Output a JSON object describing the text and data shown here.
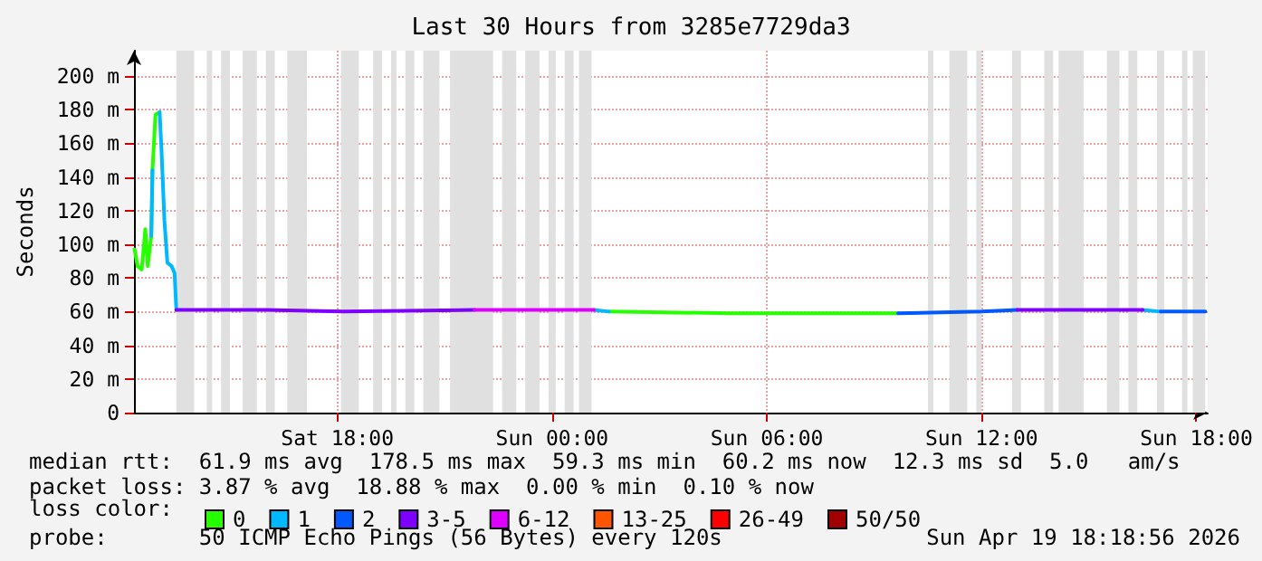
{
  "chart_data": {
    "type": "line",
    "title": "Last 30 Hours from 3285e7729da3",
    "ylabel": "Seconds",
    "legend_title": "loss color:",
    "legend": "bottom",
    "grid": true,
    "xlim": [
      "2026-04-18T12:19",
      "2026-04-19T18:19"
    ],
    "xticks": [
      {
        "value": "2026-04-18T18:00",
        "label": "Sat 18:00"
      },
      {
        "value": "2026-04-19T00:00",
        "label": "Sun 00:00"
      },
      {
        "value": "2026-04-19T06:00",
        "label": "Sun 06:00"
      },
      {
        "value": "2026-04-19T12:00",
        "label": "Sun 12:00"
      },
      {
        "value": "2026-04-19T18:00",
        "label": "Sun 18:00"
      }
    ],
    "ylim": [
      0,
      215
    ],
    "yticks": [
      0,
      {
        "value": 20,
        "label": "20 m"
      },
      {
        "value": 40,
        "label": "40 m"
      },
      {
        "value": 60,
        "label": "60 m"
      },
      {
        "value": 80,
        "label": "80 m"
      },
      {
        "value": 100,
        "label": "100 m"
      },
      {
        "value": 120,
        "label": "120 m"
      },
      {
        "value": 140,
        "label": "140 m"
      },
      {
        "value": 160,
        "label": "160 m"
      },
      {
        "value": 180,
        "label": "180 m"
      },
      {
        "value": 200,
        "label": "200 m"
      }
    ],
    "x": [
      "2026-04-18T12:20",
      "2026-04-18T12:25",
      "2026-04-18T12:32",
      "2026-04-18T12:38",
      "2026-04-18T12:42",
      "2026-04-18T12:48",
      "2026-04-18T12:50",
      "2026-04-18T12:55",
      "2026-04-18T13:02",
      "2026-04-18T13:05",
      "2026-04-18T13:10",
      "2026-04-18T13:15",
      "2026-04-18T13:22",
      "2026-04-18T13:27",
      "2026-04-18T13:30",
      "2026-04-18T16:00",
      "2026-04-18T18:10",
      "2026-04-18T21:50",
      "2026-04-19T01:10",
      "2026-04-19T01:35",
      "2026-04-19T05:00",
      "2026-04-19T09:40",
      "2026-04-19T12:00",
      "2026-04-19T13:00",
      "2026-04-19T16:30",
      "2026-04-19T17:00",
      "2026-04-19T18:15"
    ],
    "series": [
      {
        "name": "0",
        "color": "#26ff00",
        "values": [
          97,
          87,
          85,
          109,
          87,
          105,
          144,
          177,
          178.5,
          null,
          null,
          null,
          null,
          null,
          null,
          null,
          null,
          null,
          null,
          60,
          59,
          59,
          null,
          null,
          null,
          null,
          null
        ]
      },
      {
        "name": "1",
        "color": "#00b8ff",
        "values": [
          null,
          null,
          null,
          null,
          null,
          105,
          144,
          null,
          178.5,
          157,
          114,
          89,
          87,
          83,
          61,
          null,
          null,
          null,
          61,
          60,
          null,
          null,
          null,
          null,
          61,
          60,
          null
        ]
      },
      {
        "name": "2",
        "color": "#0059ff",
        "values": [
          null,
          null,
          null,
          null,
          null,
          null,
          null,
          null,
          null,
          null,
          null,
          null,
          null,
          null,
          null,
          null,
          null,
          null,
          null,
          null,
          null,
          59,
          60,
          61,
          null,
          60,
          60
        ]
      },
      {
        "name": "3-5",
        "color": "#7e00ff",
        "values": [
          null,
          null,
          null,
          null,
          null,
          null,
          null,
          null,
          null,
          null,
          null,
          null,
          null,
          null,
          61,
          61,
          60,
          61,
          null,
          null,
          null,
          null,
          null,
          61,
          61,
          null,
          null
        ]
      },
      {
        "name": "6-12",
        "color": "#dd00ff",
        "values": [
          null,
          null,
          null,
          null,
          null,
          null,
          null,
          null,
          null,
          null,
          null,
          null,
          null,
          null,
          null,
          null,
          null,
          61,
          61,
          null,
          null,
          null,
          null,
          null,
          null,
          null,
          null
        ]
      },
      {
        "name": "13-25",
        "color": "#ff5500",
        "values": [
          null,
          null,
          null,
          null,
          null,
          null,
          null,
          null,
          null,
          null,
          null,
          null,
          null,
          null,
          null,
          null,
          null,
          null,
          null,
          null,
          null,
          null,
          null,
          null,
          null,
          null,
          null
        ]
      },
      {
        "name": "26-49",
        "color": "#ff0000",
        "values": [
          null,
          null,
          null,
          null,
          null,
          null,
          null,
          null,
          null,
          null,
          null,
          null,
          null,
          null,
          null,
          null,
          null,
          null,
          null,
          null,
          null,
          null,
          null,
          null,
          null,
          null,
          null
        ]
      },
      {
        "name": "50/50",
        "color": "#a10000",
        "values": [
          null,
          null,
          null,
          null,
          null,
          null,
          null,
          null,
          null,
          null,
          null,
          null,
          null,
          null,
          null,
          null,
          null,
          null,
          null,
          null,
          null,
          null,
          null,
          null,
          null,
          null,
          null
        ]
      }
    ],
    "bands": [
      {
        "axis": "x",
        "from": "2026-04-18T13:30",
        "to": "2026-04-18T14:00",
        "color": "#e0e0e0"
      },
      {
        "axis": "x",
        "from": "2026-04-18T14:21",
        "to": "2026-04-18T14:30",
        "color": "#e0e0e0"
      },
      {
        "axis": "x",
        "from": "2026-04-18T14:45",
        "to": "2026-04-18T15:00",
        "color": "#e0e0e0"
      },
      {
        "axis": "x",
        "from": "2026-04-18T15:21",
        "to": "2026-04-18T15:45",
        "color": "#e0e0e0"
      },
      {
        "axis": "x",
        "from": "2026-04-18T16:00",
        "to": "2026-04-18T16:15",
        "color": "#e0e0e0"
      },
      {
        "axis": "x",
        "from": "2026-04-18T16:36",
        "to": "2026-04-18T17:09",
        "color": "#e0e0e0"
      },
      {
        "axis": "x",
        "from": "2026-04-18T18:06",
        "to": "2026-04-18T18:36",
        "color": "#e0e0e0"
      },
      {
        "axis": "x",
        "from": "2026-04-18T19:00",
        "to": "2026-04-18T19:15",
        "color": "#e0e0e0"
      },
      {
        "axis": "x",
        "from": "2026-04-18T19:30",
        "to": "2026-04-18T19:39",
        "color": "#e0e0e0"
      },
      {
        "axis": "x",
        "from": "2026-04-18T19:54",
        "to": "2026-04-18T20:09",
        "color": "#e0e0e0"
      },
      {
        "axis": "x",
        "from": "2026-04-18T20:24",
        "to": "2026-04-18T20:51",
        "color": "#e0e0e0"
      },
      {
        "axis": "x",
        "from": "2026-04-18T21:09",
        "to": "2026-04-18T22:21",
        "color": "#e0e0e0"
      },
      {
        "axis": "x",
        "from": "2026-04-18T22:36",
        "to": "2026-04-18T23:00",
        "color": "#e0e0e0"
      },
      {
        "axis": "x",
        "from": "2026-04-18T23:15",
        "to": "2026-04-18T23:39",
        "color": "#e0e0e0"
      },
      {
        "axis": "x",
        "from": "2026-04-18T23:54",
        "to": "2026-04-19T00:06",
        "color": "#e0e0e0"
      },
      {
        "axis": "x",
        "from": "2026-04-19T00:21",
        "to": "2026-04-19T00:36",
        "color": "#e0e0e0"
      },
      {
        "axis": "x",
        "from": "2026-04-19T00:45",
        "to": "2026-04-19T01:06",
        "color": "#e0e0e0"
      },
      {
        "axis": "x",
        "from": "2026-04-19T10:30",
        "to": "2026-04-19T10:39",
        "color": "#e0e0e0"
      },
      {
        "axis": "x",
        "from": "2026-04-19T11:06",
        "to": "2026-04-19T11:36",
        "color": "#e0e0e0"
      },
      {
        "axis": "x",
        "from": "2026-04-19T11:51",
        "to": "2026-04-19T12:00",
        "color": "#e0e0e0"
      },
      {
        "axis": "x",
        "from": "2026-04-19T12:51",
        "to": "2026-04-19T13:06",
        "color": "#e0e0e0"
      },
      {
        "axis": "x",
        "from": "2026-04-19T13:45",
        "to": "2026-04-19T14:00",
        "color": "#e0e0e0"
      },
      {
        "axis": "x",
        "from": "2026-04-19T14:09",
        "to": "2026-04-19T14:51",
        "color": "#e0e0e0"
      },
      {
        "axis": "x",
        "from": "2026-04-19T15:30",
        "to": "2026-04-19T15:51",
        "color": "#e0e0e0"
      },
      {
        "axis": "x",
        "from": "2026-04-19T16:06",
        "to": "2026-04-19T16:21",
        "color": "#e0e0e0"
      },
      {
        "axis": "x",
        "from": "2026-04-19T16:54",
        "to": "2026-04-19T17:06",
        "color": "#e0e0e0"
      },
      {
        "axis": "x",
        "from": "2026-04-19T17:36",
        "to": "2026-04-19T17:45",
        "color": "#e0e0e0"
      },
      {
        "axis": "x",
        "from": "2026-04-19T17:54",
        "to": "2026-04-19T18:15",
        "color": "#e0e0e0"
      }
    ],
    "annotations": [
      "median rtt:  61.9 ms avg  178.5 ms max  59.3 ms min  60.2 ms now  12.3 ms sd  5.0   am/s",
      "packet loss: 3.87 % avg  18.88 % max  0.00 % min  0.10 % now",
      "probe:       50 ICMP Echo Pings (56 Bytes) every 120s",
      "Sun Apr 19 18:18:56 2026"
    ]
  }
}
